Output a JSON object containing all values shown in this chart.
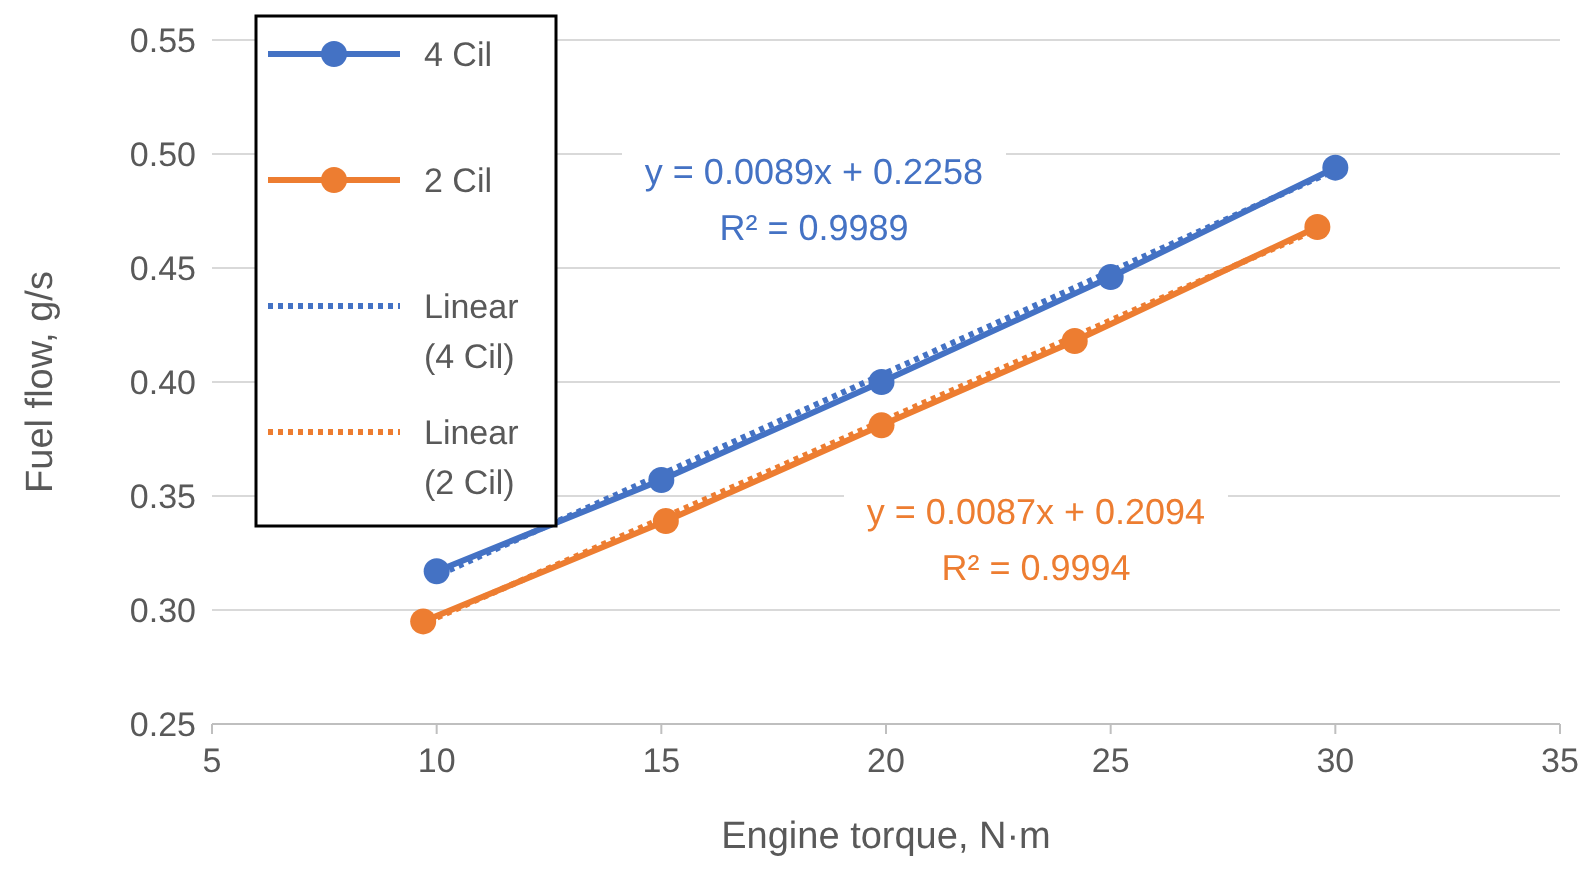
{
  "chart_data": {
    "type": "line",
    "xlabel": "Engine torque, N·m",
    "ylabel": "Fuel flow, g/s",
    "xlim": [
      5,
      35
    ],
    "xticks": [
      5,
      10,
      15,
      20,
      25,
      30,
      35
    ],
    "ylim": [
      0.25,
      0.55
    ],
    "yticks": [
      {
        "value": 0.25,
        "label": "0.25"
      },
      {
        "value": 0.3,
        "label": "0.30"
      },
      {
        "value": 0.35,
        "label": "0.35"
      },
      {
        "value": 0.4,
        "label": "0.40"
      },
      {
        "value": 0.45,
        "label": "0.45"
      },
      {
        "value": 0.5,
        "label": "0.50"
      },
      {
        "value": 0.55,
        "label": "0.55"
      }
    ],
    "grid": "y",
    "legend": "top left",
    "series": [
      {
        "name": "4 Cil",
        "color": "#4472c4",
        "x": [
          10,
          15,
          19.9,
          25,
          30
        ],
        "values": [
          0.317,
          0.357,
          0.4,
          0.446,
          0.494
        ],
        "marker": "circle",
        "line_style": "solid"
      },
      {
        "name": "2 Cil",
        "color": "#ed7d31",
        "x": [
          9.7,
          15.1,
          19.9,
          24.2,
          29.6
        ],
        "values": [
          0.295,
          0.339,
          0.381,
          0.418,
          0.468
        ],
        "marker": "circle",
        "line_style": "solid"
      },
      {
        "name": "Linear (4 Cil)",
        "color": "#4472c4",
        "x": [
          10,
          30
        ],
        "values": [
          0.315,
          0.493
        ],
        "marker": "none",
        "line_style": "dotted"
      },
      {
        "name": "Linear (2 Cil)",
        "color": "#ed7d31",
        "x": [
          9.7,
          29.6
        ],
        "values": [
          0.294,
          0.467
        ],
        "marker": "none",
        "line_style": "dotted"
      }
    ],
    "annotations": [
      "y = 0.0089x + 0.2258",
      "R² = 0.9989",
      "y = 0.0087x + 0.2094",
      "R² = 0.9994"
    ]
  }
}
